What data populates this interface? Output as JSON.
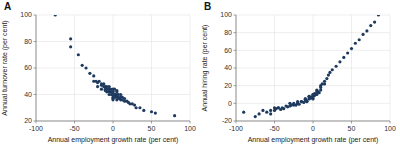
{
  "chart_data": [
    {
      "type": "scatter",
      "title": "A",
      "xlabel": "Annual employment growth rate (per cent)",
      "ylabel": "Annual turnover rate (per cent)",
      "xlim": [
        -100,
        100
      ],
      "ylim": [
        20,
        100
      ],
      "xticks": [
        -100,
        -50,
        0,
        50,
        100
      ],
      "yticks": [
        20,
        40,
        60,
        80,
        100
      ],
      "grid": true,
      "color": "#1e3a5f",
      "x": [
        -75,
        -55,
        -55,
        -45,
        -40,
        -35,
        -30,
        -25,
        -25,
        -22,
        -20,
        -20,
        -18,
        -15,
        -15,
        -15,
        -12,
        -12,
        -10,
        -10,
        -10,
        -8,
        -8,
        -8,
        -5,
        -5,
        -5,
        -5,
        -5,
        -3,
        -3,
        -2,
        -2,
        0,
        0,
        0,
        0,
        0,
        0,
        0,
        2,
        2,
        3,
        3,
        5,
        5,
        5,
        5,
        5,
        7,
        7,
        8,
        10,
        10,
        10,
        12,
        12,
        15,
        15,
        18,
        20,
        22,
        25,
        28,
        30,
        35,
        40,
        50,
        55,
        80
      ],
      "values": [
        100,
        82,
        76,
        70,
        62,
        60,
        56,
        54,
        50,
        50,
        49,
        46,
        50,
        48,
        47,
        44,
        48,
        46,
        46,
        44,
        43,
        46,
        44,
        42,
        46,
        44,
        43,
        42,
        40,
        44,
        42,
        42,
        40,
        44,
        42,
        42,
        40,
        38,
        37,
        36,
        44,
        40,
        40,
        38,
        43,
        42,
        40,
        38,
        36,
        40,
        38,
        37,
        40,
        38,
        36,
        38,
        36,
        37,
        35,
        35,
        34,
        33,
        33,
        32,
        30,
        30,
        28,
        27,
        26,
        24
      ]
    },
    {
      "type": "scatter",
      "title": "B",
      "xlabel": "Annual employment growth rate (per cent)",
      "ylabel": "Annual hiring rate (per cent)",
      "xlim": [
        -100,
        100
      ],
      "ylim": [
        -20,
        100
      ],
      "xticks": [
        -100,
        -50,
        0,
        50,
        100
      ],
      "yticks": [
        -20,
        0,
        20,
        40,
        60,
        80,
        100
      ],
      "grid": true,
      "color": "#1e3a5f",
      "x": [
        -90,
        -75,
        -70,
        -65,
        -60,
        -55,
        -55,
        -50,
        -50,
        -48,
        -45,
        -45,
        -42,
        -40,
        -38,
        -35,
        -33,
        -30,
        -30,
        -28,
        -25,
        -25,
        -22,
        -20,
        -20,
        -20,
        -18,
        -15,
        -15,
        -12,
        -10,
        -10,
        -10,
        -8,
        -8,
        -8,
        -5,
        -5,
        -5,
        -5,
        -3,
        -2,
        0,
        0,
        0,
        0,
        0,
        0,
        2,
        2,
        3,
        5,
        5,
        5,
        5,
        5,
        7,
        8,
        10,
        10,
        10,
        12,
        15,
        15,
        18,
        20,
        22,
        25,
        30,
        35,
        40,
        45,
        50,
        55,
        60,
        65,
        70,
        75,
        80,
        85
      ],
      "values": [
        -10,
        -15,
        -12,
        -8,
        -10,
        -8,
        -12,
        -8,
        -5,
        -6,
        -5,
        -5,
        -7,
        -5,
        -6,
        -3,
        -4,
        0,
        -3,
        -2,
        0,
        -2,
        -2,
        2,
        0,
        0,
        -1,
        2,
        2,
        1,
        5,
        5,
        4,
        3,
        2,
        2,
        8,
        8,
        6,
        5,
        6,
        7,
        10,
        10,
        8,
        8,
        6,
        5,
        11,
        9,
        10,
        15,
        14,
        12,
        11,
        10,
        13,
        12,
        20,
        18,
        15,
        22,
        25,
        22,
        28,
        32,
        35,
        38,
        42,
        47,
        52,
        57,
        62,
        68,
        72,
        78,
        82,
        88,
        92,
        100
      ]
    }
  ]
}
